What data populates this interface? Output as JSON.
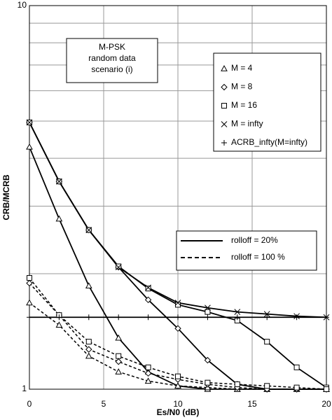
{
  "chart_data": {
    "type": "line",
    "log_y": true,
    "x_label": "Es/N0 (dB)",
    "y_label": "CRB/MCRB",
    "annotation": [
      "M-PSK",
      "random data",
      "scenario (i)"
    ],
    "x": [
      0,
      2,
      4,
      6,
      8,
      10,
      12,
      14,
      16,
      18,
      20
    ],
    "xlim": [
      0,
      20
    ],
    "xticks": [
      0,
      5,
      10,
      15,
      20
    ],
    "ylim": [
      1,
      10
    ],
    "yticks": [
      1,
      10
    ],
    "y_minor_grid": [
      2,
      3,
      4,
      5,
      6,
      7,
      8,
      9
    ],
    "grid": true,
    "line_styles": [
      {
        "name": "rolloff = 20%",
        "dash": "solid"
      },
      {
        "name": "rolloff = 100 %",
        "dash": "dashed"
      }
    ],
    "series": [
      {
        "name": "M = 4",
        "marker": "triangle",
        "color": "#000000",
        "curves": [
          [
            4.28,
            2.78,
            1.86,
            1.36,
            1.11,
            1.02,
            1.0,
            1.0,
            1.0,
            1.0,
            1.0
          ],
          [
            1.68,
            1.47,
            1.22,
            1.11,
            1.05,
            1.02,
            1.01,
            1.0,
            1.0,
            1.0,
            1.0
          ]
        ]
      },
      {
        "name": "M = 8",
        "marker": "diamond",
        "color": "#000000",
        "curves": [
          [
            4.96,
            3.48,
            2.6,
            2.08,
            1.71,
            1.44,
            1.19,
            1.03,
            1.0,
            1.0,
            1.0
          ],
          [
            1.89,
            1.56,
            1.27,
            1.18,
            1.1,
            1.06,
            1.03,
            1.01,
            1.0,
            1.0,
            1.0
          ]
        ]
      },
      {
        "name": "M = 16",
        "marker": "square",
        "color": "#000000",
        "curves": [
          [
            4.96,
            3.48,
            2.6,
            2.09,
            1.83,
            1.66,
            1.59,
            1.51,
            1.33,
            1.14,
            1.01
          ],
          [
            1.95,
            1.56,
            1.33,
            1.22,
            1.14,
            1.08,
            1.04,
            1.03,
            1.02,
            1.01,
            1.0
          ]
        ]
      },
      {
        "name": "M = infty",
        "marker": "x",
        "color": "#000000",
        "curves": [
          [
            4.96,
            3.48,
            2.6,
            2.08,
            1.84,
            1.68,
            1.63,
            1.59,
            1.57,
            1.55,
            1.54
          ]
        ]
      },
      {
        "name": "ACRB_infty(M=infty)",
        "marker": "plus",
        "color": "#000000",
        "curves": [
          [
            1.54,
            1.54,
            1.54,
            1.54,
            1.54,
            1.54,
            1.54,
            1.54,
            1.54,
            1.54,
            1.54
          ]
        ]
      }
    ]
  }
}
